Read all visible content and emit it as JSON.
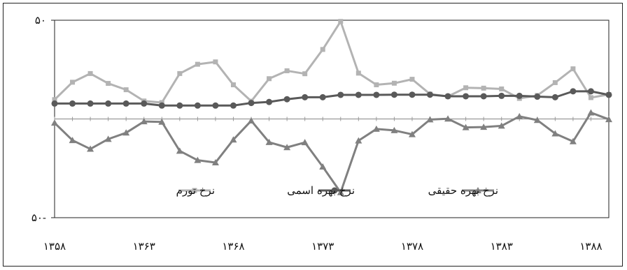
{
  "chart_data": {
    "type": "line",
    "x": [
      1358,
      1359,
      1360,
      1361,
      1362,
      1363,
      1364,
      1365,
      1366,
      1367,
      1368,
      1369,
      1370,
      1371,
      1372,
      1373,
      1374,
      1375,
      1376,
      1377,
      1378,
      1379,
      1380,
      1381,
      1382,
      1383,
      1384,
      1385,
      1386,
      1387,
      1388,
      1389
    ],
    "x_tick_labels": [
      "۱۳۵۸",
      "۱۳۶۳",
      "۱۳۶۸",
      "۱۳۷۳",
      "۱۳۷۸",
      "۱۳۸۳",
      "۱۳۸۸"
    ],
    "x_tick_values": [
      1358,
      1363,
      1368,
      1373,
      1378,
      1383,
      1388
    ],
    "y_tick_labels": [
      "۵۰",
      "۵۰-"
    ],
    "y_tick_values": [
      50,
      -50
    ],
    "ylim": [
      -50,
      50
    ],
    "series": [
      {
        "name": "نرخ تورم",
        "color": "#b3b3b3",
        "marker": "square",
        "values": [
          9.8,
          18.6,
          23,
          18,
          14.8,
          9.1,
          8.3,
          23,
          27.7,
          28.9,
          17.3,
          9,
          20.4,
          24.4,
          22.9,
          35.2,
          49.4,
          23.2,
          17.3,
          18.1,
          20.1,
          12.6,
          11.4,
          15.8,
          15.6,
          15.2,
          10.4,
          11.9,
          18.4,
          25.4,
          10.8,
          12.4
        ],
        "label": "نرخ تورم"
      },
      {
        "name": "نرخ بهره اسمی",
        "color": "#595959",
        "marker": "circle",
        "values": [
          7.8,
          7.8,
          7.8,
          7.8,
          7.8,
          7.8,
          6.8,
          6.8,
          6.8,
          6.8,
          6.8,
          8.1,
          8.6,
          10,
          11,
          11,
          12.2,
          12.2,
          12.2,
          12.3,
          12.3,
          12.3,
          11.5,
          11.5,
          11.5,
          11.7,
          11.7,
          11.3,
          11,
          14,
          14,
          12.2
        ],
        "label": "نرخ بهره اسمی"
      },
      {
        "name": "نرخ بهره حقیقی",
        "color": "#808080",
        "marker": "triangle",
        "values": [
          -2,
          -10.8,
          -15.2,
          -10.2,
          -7,
          -1.3,
          -1.5,
          -16.2,
          -20.9,
          -22.1,
          -10.5,
          -0.9,
          -11.8,
          -14.4,
          -11.9,
          -24.2,
          -37.2,
          -11,
          -5.1,
          -5.8,
          -7.8,
          -0.3,
          0.1,
          -4.3,
          -4.1,
          -3.5,
          1.3,
          -0.6,
          -7.4,
          -11.4,
          3.2,
          -0.2
        ],
        "label": "نرخ بهره حقیقی"
      }
    ],
    "grid": false,
    "legend_placement": "lower-center"
  }
}
